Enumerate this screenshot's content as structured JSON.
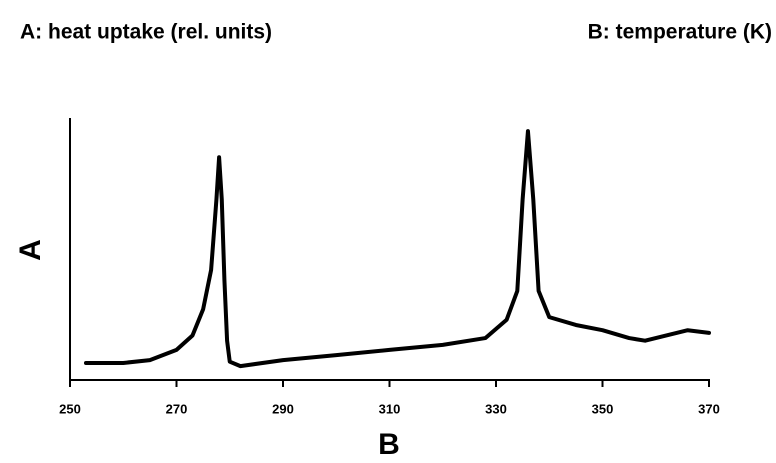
{
  "chart_data": {
    "type": "line",
    "annotations": [
      "A: heat uptake (rel. units)",
      "B: temperature (K)"
    ],
    "y_label": "A",
    "x_label": "B",
    "x": [
      253,
      260,
      265,
      270,
      273,
      275,
      276.5,
      277.5,
      278,
      278.5,
      279,
      279.5,
      280,
      282,
      290,
      300,
      310,
      320,
      328,
      332,
      334,
      335,
      336,
      337,
      338,
      340,
      345,
      350,
      355,
      358,
      362,
      366,
      370
    ],
    "series": [
      {
        "name": "heat uptake",
        "color": "#000000",
        "values": [
          6.5,
          6.5,
          7.6,
          11.5,
          17,
          27,
          42,
          69,
          85,
          69,
          38,
          15,
          7,
          5.3,
          7.6,
          9.5,
          11.5,
          13.4,
          16,
          23,
          34,
          69,
          95,
          69,
          34,
          24,
          21,
          19,
          16,
          15,
          17,
          19,
          18
        ]
      }
    ],
    "xlim": [
      250,
      370
    ],
    "xticks": [
      250,
      270,
      290,
      310,
      330,
      350,
      370
    ],
    "ylim": [
      0,
      100
    ]
  }
}
